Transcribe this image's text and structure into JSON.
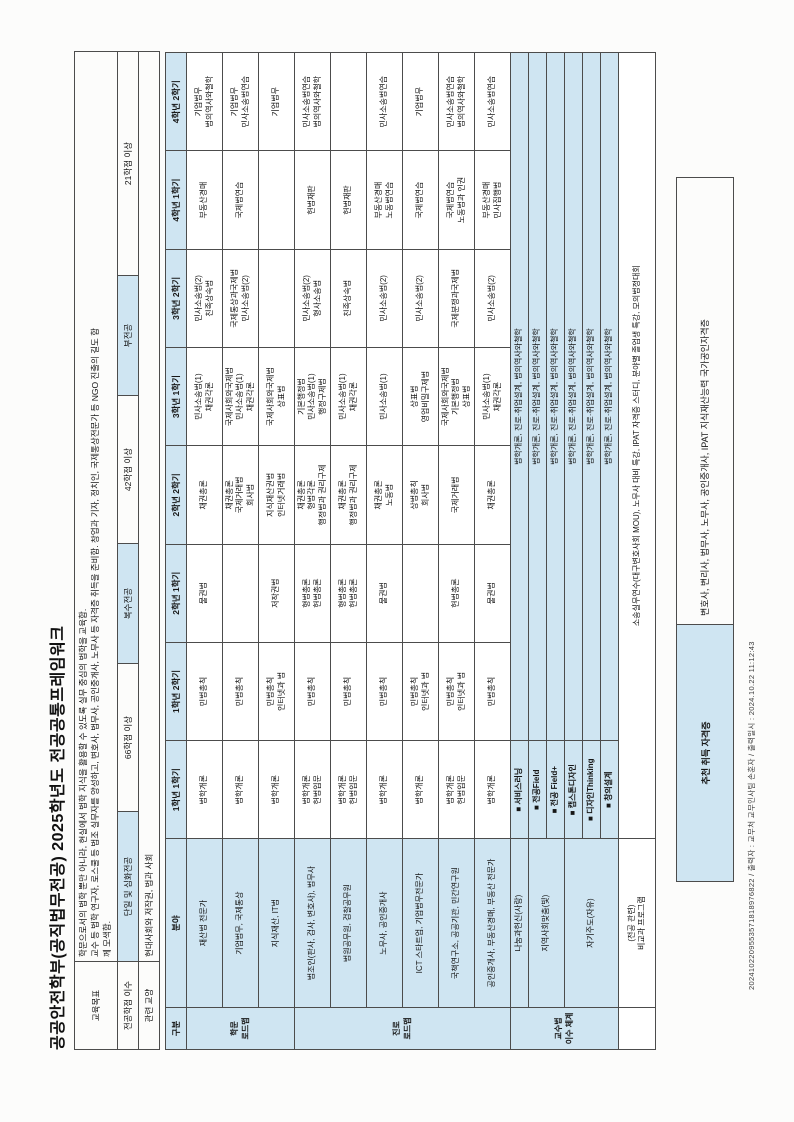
{
  "page": {
    "title": "공공안전학부(공직법무전공) 2025학년도 전공공통프레임워크"
  },
  "header": {
    "goal": {
      "label": "교육목표",
      "text": "학문으로서의 법학 뿐만 아니라, 현실에서 법학 지식을 활용할 수 있도록 실무 중심의 법학을 교육함.\n교수 등 법학 연구자, 로스쿨 등 법조 실무자를 양성하고, 변호사, 법무사, 공인중개사, 노무사 등 자격증 취득을 준비함. 창업과 기자, 정치인, 국제통상전문가 등 NGO 진출의 길도 함\n께 모색함."
    },
    "credits": {
      "label": "전공학점 이수",
      "cells": [
        "단일 및 심화전공",
        "66학점 이상",
        "복수전공",
        "42학점 이상",
        "부전공",
        "21학점 이상"
      ]
    },
    "liberal": {
      "label": "관련 교양",
      "text": "현대사회와 저작권, 법과 사회"
    }
  },
  "main_table": {
    "col_headers": [
      "구분",
      "분야",
      "1학년 1학기",
      "1학년 2학기",
      "2학년 1학기",
      "2학년 2학기",
      "3학년 1학기",
      "3학년 2학기",
      "4학년 1학기",
      "4학년 2학기"
    ],
    "groups": [
      {
        "name": "학문\n로드맵",
        "rows": [
          {
            "field": "재산법 전문가",
            "cells": [
              "법학개론",
              "민법총칙",
              "물권법",
              "채권총론",
              "민사소송법(1)\n채권각론",
              "민사소송법(2)\n친족상속법",
              "부동산경매",
              "기업법무\n법의역사와철학"
            ]
          },
          {
            "field": "기업법무, 국제통상",
            "cells": [
              "법학개론",
              "민법총칙",
              "",
              "채권총론\n국제거래법\n회사법",
              "국제사회와국제법\n민사소송법(1)\n채권각론",
              "국제통상과국제법\n민사소송법(2)",
              "국제법연습",
              "기업법무\n민사소송법연습"
            ]
          },
          {
            "field": "지식재산, IT법",
            "cells": [
              "법학개론",
              "민법총칙\n인터넷과 법",
              "저작권법",
              "지식재산권법\n인터넷거래법",
              "국제사회와국제법\n상표법",
              "",
              "",
              "기업법무"
            ]
          }
        ]
      },
      {
        "name": "진로\n로드맵",
        "rows": [
          {
            "field": "법조인(판사, 검사, 변호사), 법무사",
            "cells": [
              "법학개론\n헌법입문",
              "민법총칙",
              "형법총론\n헌법총론",
              "채권총론\n형법각론\n행정법과 권리구제",
              "기본행정법\n민사소송법(1)\n행정구제법",
              "민사소송법(2)\n형사소송법",
              "헌법재판",
              "민사소송법연습\n법의역사와철학"
            ]
          },
          {
            "field": "법원공무원, 검찰공무원",
            "cells": [
              "법학개론\n헌법입문",
              "민법총칙",
              "형법총론\n헌법총론",
              "채권총론\n행정법과 권리구제",
              "민사소송법(1)\n채권각론",
              "친족상속법",
              "헌법재판",
              ""
            ]
          },
          {
            "field": "노무사, 공인중개사",
            "cells": [
              "법학개론",
              "민법총칙",
              "물권법",
              "채권총론\n노동법",
              "민사소송법(1)",
              "민사소송법(2)",
              "부동산경매\n노동법연습",
              "민사소송법연습"
            ]
          },
          {
            "field": "ICT 스타트업, 기업법무전문가",
            "cells": [
              "법학개론",
              "민법총칙\n인터넷과 법",
              "",
              "상법총칙\n회사법",
              "상표법\n영업비밀구제법",
              "민사소송법(2)",
              "국제법연습",
              "기업법무"
            ]
          },
          {
            "field": "국책연구소, 공공기관, 민간연구원",
            "cells": [
              "법학개론\n헌법입문",
              "민법총칙\n인터넷과 법",
              "헌법총론",
              "국제거래법",
              "국제사회와국제법\n기본행정법\n상표법",
              "국제분쟁과국제법",
              "국제법연습\n노동법과 인권",
              "민사소송법연습\n법의역사와철학"
            ]
          },
          {
            "field": "공인중개사, 부동산경매, 부동산 전문가",
            "cells": [
              "법학개론",
              "민법총칙",
              "물권법",
              "채권총론",
              "민사소송법(1)\n채권각론",
              "민사소송법(2)",
              "부동산경매\n민사집행법",
              "민사소송법연습"
            ]
          }
        ]
      },
      {
        "name": "교수법\n이수 체계",
        "common_line": "법학개론, 진로·취업설계, 법의역사와철학",
        "rows": [
          {
            "field": "나눔과헌신(사랑)",
            "rowspan": 1,
            "method": "■ 서비스러닝"
          },
          {
            "field": "지역사회맞춤(빛)",
            "rowspan": 2,
            "method": "■ 전공Field"
          },
          {
            "method": "■ 전공 Field+"
          },
          {
            "field": "자기주도(자유)",
            "rowspan": 3,
            "method": "■ 캡스톤디자인"
          },
          {
            "method": "■ 디자인Thinking"
          },
          {
            "method": "■ 창의설계"
          }
        ]
      }
    ],
    "extra_row": {
      "label": "(전공 관련)\n비교과 프로그램",
      "text": "소송실무연수(대구변호사회 MOU), 노무사 대비 특강, IPAT 자격증 스터디, 분야별 졸업생 특강, 모의법정대회"
    }
  },
  "recommended": {
    "label": "추천 취득 자격증",
    "text": "변호사, 변리사, 법무사, 노무사, 공인중개사, IPAT 지식재산능력 국가공인자격증"
  },
  "footer": {
    "text": "2024102209553571818976822  /  출력자 : 교무처 교무인사팀 손훈자  /  출력일시 : 2024.10.22 11:12:43"
  }
}
